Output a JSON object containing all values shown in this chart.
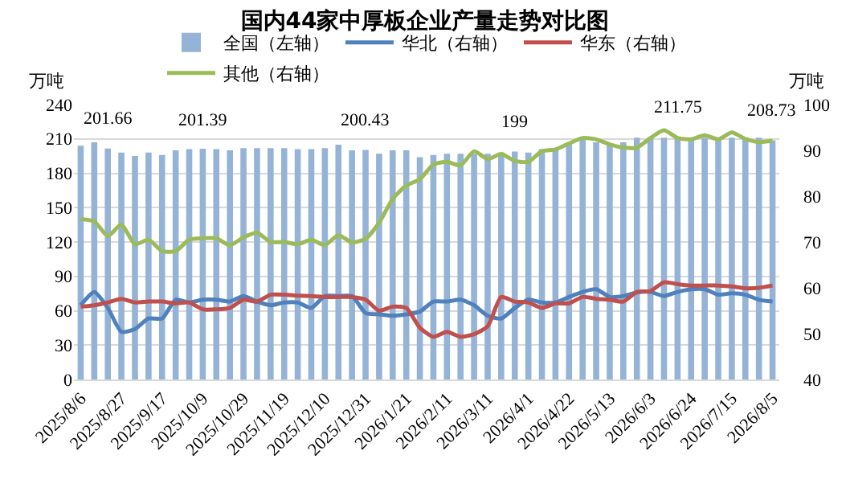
{
  "chart_data": {
    "type": "bar",
    "title": "国内44家中厚板企业产量走势对比图",
    "ylabel": "万吨",
    "y2label": "万吨",
    "categories": [
      "2025/8/6",
      null,
      null,
      "2025/8/27",
      null,
      null,
      "2025/9/17",
      null,
      null,
      "2025/10/9",
      null,
      null,
      "2025/10/29",
      null,
      null,
      "2025/11/19",
      null,
      null,
      "2025/12/10",
      null,
      null,
      "2025/12/31",
      null,
      null,
      "2026/1/21",
      null,
      null,
      "2026/2/11",
      null,
      null,
      "2026/3/11",
      null,
      null,
      "2026/4/1",
      null,
      null,
      "2026/4/22",
      null,
      null,
      "2026/5/13",
      null,
      null,
      "2026/6/3",
      null,
      null,
      "2026/6/24",
      null,
      null,
      "2026/7/15",
      null,
      null,
      "2026/8/5"
    ],
    "series": [
      {
        "name": "全国（左轴）",
        "color": "#95b3d7",
        "values": [
          204,
          207,
          201.66,
          198,
          195,
          198,
          196,
          200,
          201,
          201.39,
          201,
          200,
          202,
          202,
          202,
          202,
          201,
          201,
          202,
          205,
          200,
          200.43,
          197,
          200,
          200,
          194,
          196,
          197,
          197,
          197,
          197,
          198,
          199,
          198,
          201,
          202,
          207,
          211,
          207,
          206,
          207,
          211,
          211,
          211,
          211.75,
          211,
          211,
          210,
          211,
          211,
          211,
          208.73
        ],
        "value_labels": [
          null,
          null,
          "201.66",
          null,
          null,
          null,
          null,
          null,
          null,
          "201.39",
          null,
          null,
          null,
          null,
          null,
          null,
          null,
          null,
          null,
          null,
          null,
          "200.43",
          null,
          null,
          null,
          null,
          null,
          null,
          null,
          null,
          null,
          null,
          "199",
          null,
          null,
          null,
          null,
          null,
          null,
          null,
          null,
          null,
          null,
          null,
          "211.75",
          null,
          null,
          null,
          null,
          null,
          null,
          "208.73"
        ]
      },
      {
        "name": "华北（右轴）",
        "type": "line",
        "axis": "y2",
        "color": "#4f81bd",
        "values": [
          56.2,
          59.1,
          55.6,
          50.4,
          51,
          53.3,
          53.3,
          57.4,
          56.8,
          57.4,
          57.4,
          57,
          58.2,
          57,
          56.2,
          56.8,
          56.8,
          55.6,
          58.2,
          58.2,
          58.2,
          54.5,
          54.2,
          53.9,
          54.2,
          54.8,
          57,
          57,
          57.4,
          56.2,
          53.9,
          53.3,
          55.6,
          57.4,
          56.8,
          56.8,
          58,
          59.1,
          59.7,
          58,
          58.2,
          59,
          59.1,
          58.2,
          59.1,
          59.7,
          59.7,
          58.5,
          58.8,
          58.5,
          57.4,
          57
        ]
      },
      {
        "name": "华东（右轴）",
        "type": "line",
        "axis": "y2",
        "color": "#c0504d",
        "values": [
          55.9,
          56.2,
          56.8,
          57.6,
          56.8,
          57,
          57,
          56.6,
          56.8,
          55.3,
          55.3,
          55.6,
          57.4,
          57,
          58.5,
          58.5,
          58.3,
          58.2,
          58,
          58,
          58,
          57.4,
          55,
          55.9,
          55.6,
          51.3,
          49.3,
          50.4,
          49.3,
          49.9,
          51.6,
          58,
          57,
          56.8,
          55.6,
          56.6,
          56.6,
          58,
          57.6,
          57.4,
          57,
          59.1,
          59.3,
          61.2,
          60.8,
          60.5,
          60.5,
          60.5,
          60.3,
          59.9,
          60,
          60.5
        ]
      },
      {
        "name": "其他（右轴）",
        "type": "line",
        "axis": "y2",
        "color": "#9bbb59",
        "values": [
          75,
          74.5,
          71.3,
          73.8,
          69.5,
          70.5,
          68,
          68,
          70.5,
          70.8,
          70.8,
          69.3,
          71,
          72,
          70,
          70,
          69.5,
          70.5,
          69.3,
          71.5,
          69.9,
          70.7,
          74.2,
          79.4,
          82.3,
          83.7,
          86.9,
          87.5,
          86.7,
          89.8,
          88.1,
          89.2,
          87.7,
          87.5,
          89.8,
          90.2,
          91.5,
          92.7,
          92.4,
          91.3,
          90.6,
          90.6,
          92.7,
          94.4,
          92.7,
          92.4,
          93.3,
          92.4,
          93.9,
          92.5,
          91.8,
          92.1
        ]
      }
    ],
    "ylim": [
      0,
      240
    ],
    "yticks": [
      0,
      30,
      60,
      90,
      120,
      150,
      180,
      210,
      240
    ],
    "y2lim": [
      40,
      100
    ],
    "y2ticks": [
      40,
      50,
      60,
      70,
      80,
      90,
      100
    ],
    "grid": "y",
    "legend": "top"
  }
}
